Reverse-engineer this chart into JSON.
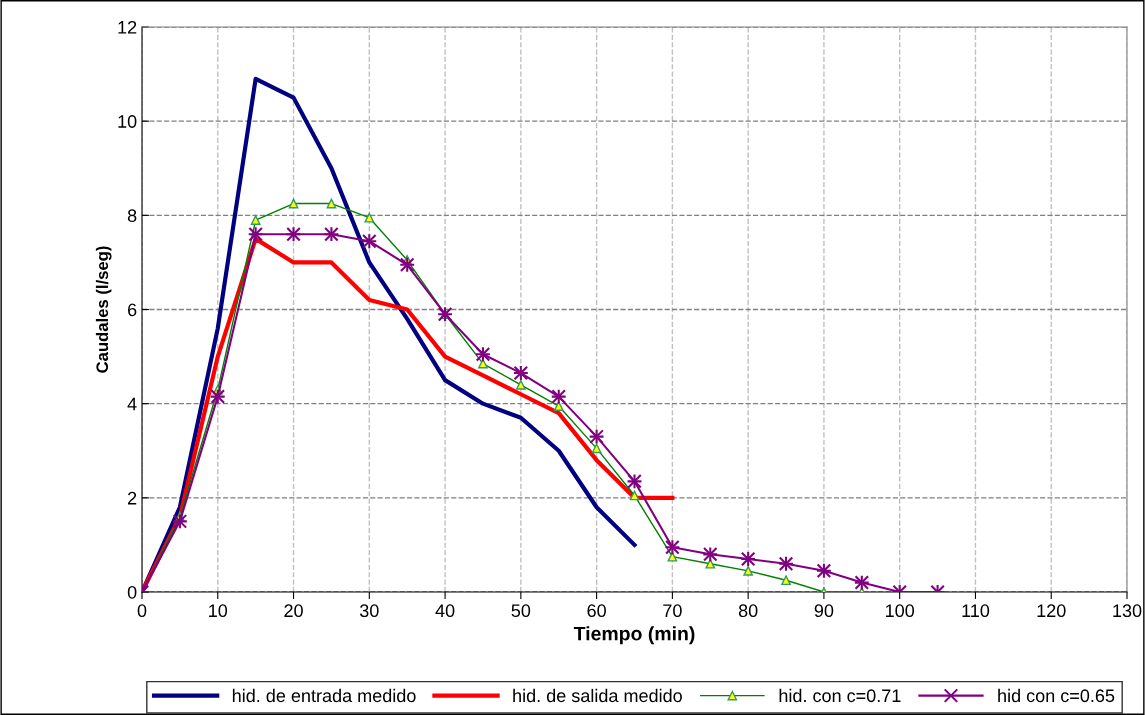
{
  "chart_data": {
    "type": "line",
    "xlabel": "Tiempo (min)",
    "ylabel": "Caudales (l/seg)",
    "x": [
      0,
      5,
      10,
      15,
      20,
      25,
      30,
      35,
      40,
      45,
      50,
      55,
      60,
      65,
      70,
      75,
      80,
      85,
      90,
      95,
      100,
      105
    ],
    "series": [
      {
        "name": "hid. de entrada medido",
        "color": "#000080",
        "marker": "none",
        "values": [
          0,
          1.8,
          5.6,
          10.9,
          10.5,
          9.0,
          7.0,
          5.8,
          4.5,
          4.0,
          3.7,
          3.0,
          1.8,
          1.0,
          null,
          null,
          null,
          null,
          null,
          null,
          null,
          null
        ]
      },
      {
        "name": "hid. de salida medido",
        "color": "#ff0000",
        "marker": "none",
        "values": [
          0,
          1.6,
          5.0,
          7.5,
          7.0,
          7.0,
          6.2,
          6.0,
          5.0,
          4.6,
          4.2,
          3.8,
          2.8,
          2.0,
          2.0,
          null,
          null,
          null,
          null,
          null,
          null,
          null
        ]
      },
      {
        "name": "hid. con c=0.71",
        "color": "#008000",
        "marker": "triangle",
        "values": [
          0,
          1.6,
          4.3,
          7.9,
          8.25,
          8.25,
          7.95,
          7.05,
          5.9,
          4.85,
          4.4,
          3.95,
          3.05,
          2.05,
          0.75,
          0.6,
          0.45,
          0.25,
          0,
          0,
          null,
          null
        ]
      },
      {
        "name": "hid con c=0.65",
        "color": "#800080",
        "marker": "cross",
        "values": [
          0,
          1.5,
          4.15,
          7.6,
          7.6,
          7.6,
          7.45,
          6.95,
          5.9,
          5.05,
          4.65,
          4.15,
          3.3,
          2.35,
          0.95,
          0.8,
          0.7,
          0.6,
          0.45,
          0.2,
          0,
          0
        ]
      }
    ],
    "xlim": [
      0,
      130
    ],
    "xticks": [
      0,
      10,
      20,
      30,
      40,
      50,
      60,
      70,
      80,
      90,
      100,
      110,
      120,
      130
    ],
    "ylim": [
      0,
      12
    ],
    "yticks": [
      0,
      2,
      4,
      6,
      8,
      10,
      12
    ],
    "grid": true,
    "legend": "bottom",
    "line_style": "solid"
  }
}
